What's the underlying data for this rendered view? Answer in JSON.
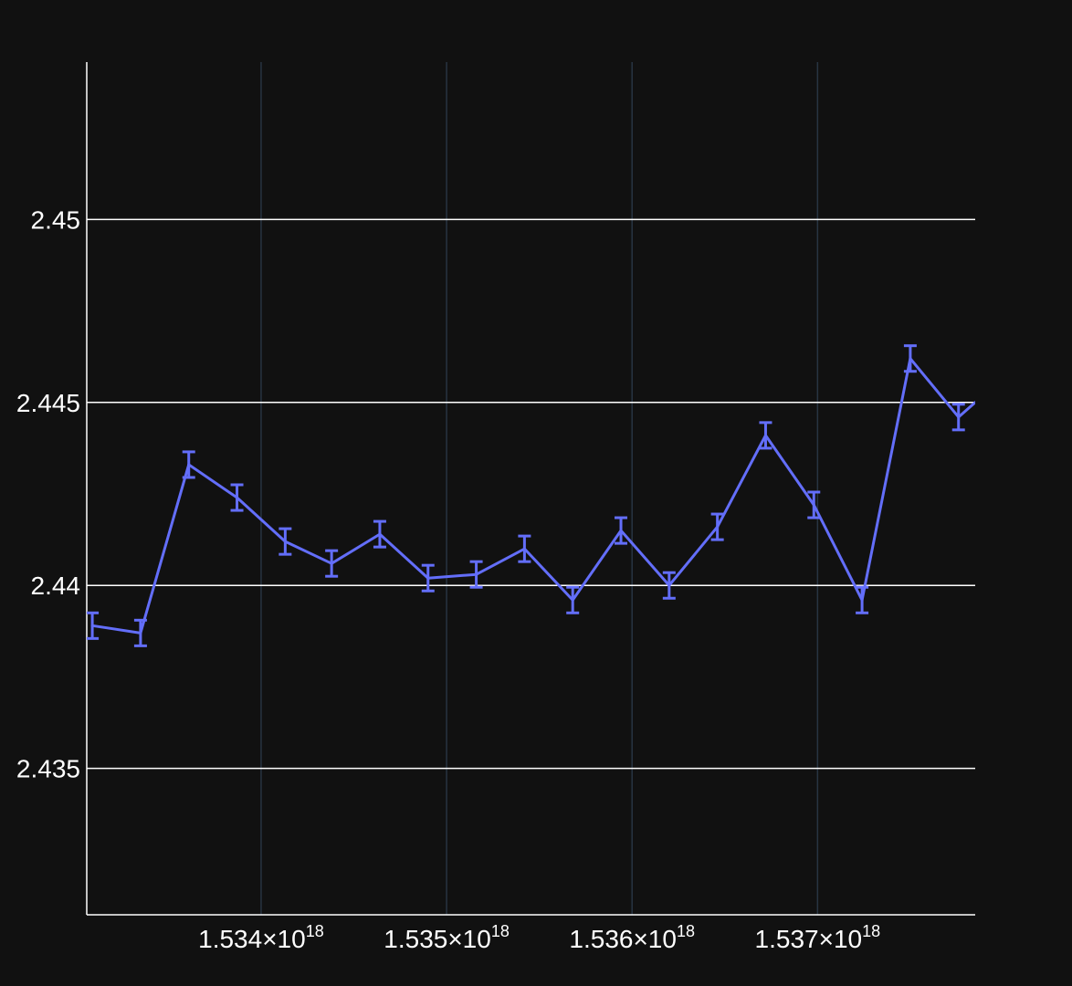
{
  "colors": {
    "background": "#111111",
    "series": "#636efa",
    "axis": "#ffffff",
    "grid_x": "#283442",
    "grid_y": "#ffffff"
  },
  "chart_data": {
    "type": "line",
    "title": "",
    "xlabel": "",
    "ylabel": "",
    "grid": true,
    "error_bars": true,
    "xlim": [
      1533060000000000000,
      1537850000000000000
    ],
    "ylim": [
      2.431,
      2.4543
    ],
    "x_ticks": [
      {
        "value": 1534000000000000000,
        "mantissa": "1.534",
        "exponent": "18"
      },
      {
        "value": 1535000000000000000,
        "mantissa": "1.535",
        "exponent": "18"
      },
      {
        "value": 1536000000000000000,
        "mantissa": "1.536",
        "exponent": "18"
      },
      {
        "value": 1537000000000000000,
        "mantissa": "1.537",
        "exponent": "18"
      }
    ],
    "y_ticks": [
      {
        "value": 2.435,
        "label": "2.435"
      },
      {
        "value": 2.44,
        "label": "2.44"
      },
      {
        "value": 2.445,
        "label": "2.445"
      },
      {
        "value": 2.45,
        "label": "2.45"
      }
    ],
    "series": [
      {
        "points": [
          {
            "x": 1533090000000000000,
            "y": 2.4389,
            "err": 0.00035
          },
          {
            "x": 1533350000000000000,
            "y": 2.4387,
            "err": 0.00035
          },
          {
            "x": 1533610000000000000,
            "y": 2.4433,
            "err": 0.00035
          },
          {
            "x": 1533870000000000000,
            "y": 2.4424,
            "err": 0.00035
          },
          {
            "x": 1534130000000000000,
            "y": 2.4412,
            "err": 0.00035
          },
          {
            "x": 1534380000000000000,
            "y": 2.4406,
            "err": 0.00035
          },
          {
            "x": 1534640000000000000,
            "y": 2.4414,
            "err": 0.00035
          },
          {
            "x": 1534900000000000000,
            "y": 2.4402,
            "err": 0.00035
          },
          {
            "x": 1535160000000000000,
            "y": 2.4403,
            "err": 0.00035
          },
          {
            "x": 1535420000000000000,
            "y": 2.441,
            "err": 0.00035
          },
          {
            "x": 1535680000000000000,
            "y": 2.4396,
            "err": 0.00035
          },
          {
            "x": 1535940000000000000,
            "y": 2.4415,
            "err": 0.00035
          },
          {
            "x": 1536200000000000000,
            "y": 2.44,
            "err": 0.00035
          },
          {
            "x": 1536460000000000000,
            "y": 2.4416,
            "err": 0.00035
          },
          {
            "x": 1536720000000000000,
            "y": 2.4441,
            "err": 0.00035
          },
          {
            "x": 1536980000000000000,
            "y": 2.4422,
            "err": 0.00035
          },
          {
            "x": 1537240000000000000,
            "y": 2.4396,
            "err": 0.00035
          },
          {
            "x": 1537500000000000000,
            "y": 2.4462,
            "err": 0.00035
          },
          {
            "x": 1537760000000000000,
            "y": 2.4446,
            "err": 0.00035
          },
          {
            "x": 1537850000000000000,
            "y": 2.445,
            "err": 0
          }
        ]
      }
    ]
  }
}
